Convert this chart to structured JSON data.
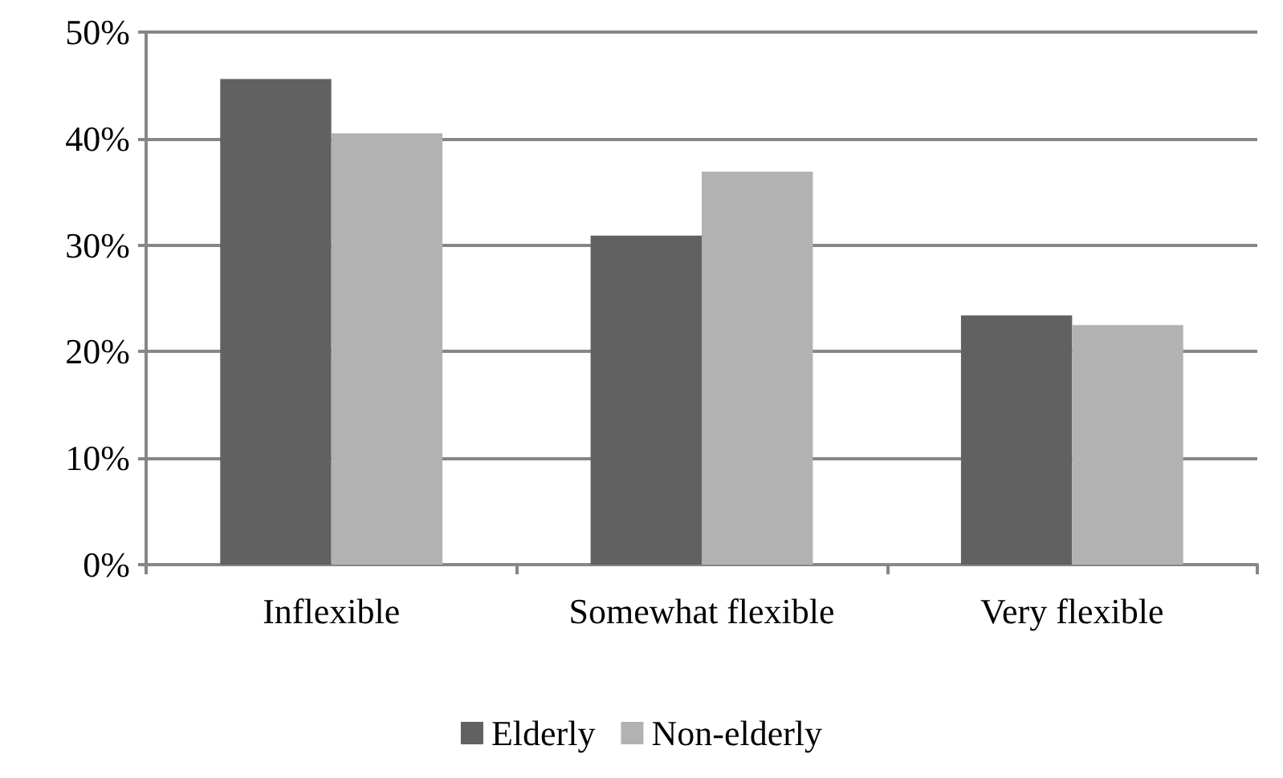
{
  "chart_data": {
    "type": "bar",
    "categories": [
      "Inflexible",
      "Somewhat flexible",
      "Very flexible"
    ],
    "series": [
      {
        "name": "Elderly",
        "color": "#616161",
        "values": [
          45.6,
          30.9,
          23.4
        ]
      },
      {
        "name": "Non-elderly",
        "color": "#b2b2b2",
        "values": [
          40.5,
          36.9,
          22.5
        ]
      }
    ],
    "ylim": [
      0,
      50
    ],
    "yticks": [
      {
        "value": 0,
        "label": "0%"
      },
      {
        "value": 10,
        "label": "10%"
      },
      {
        "value": 20,
        "label": "20%"
      },
      {
        "value": 30,
        "label": "30%"
      },
      {
        "value": 40,
        "label": "40%"
      },
      {
        "value": 50,
        "label": "50%"
      }
    ],
    "grid": "y",
    "legend": "bottom"
  }
}
